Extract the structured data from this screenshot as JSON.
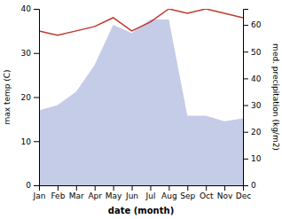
{
  "chart_data": {
    "type": "line",
    "categories": [
      "Jan",
      "Feb",
      "Mar",
      "Apr",
      "May",
      "Jun",
      "Jul",
      "Aug",
      "Sep",
      "Oct",
      "Nov",
      "Dec"
    ],
    "series": [
      {
        "type": "area",
        "color": "#c5cce8",
        "axis": "y2",
        "values": [
          28,
          30,
          35,
          45,
          60,
          57,
          62,
          62,
          26,
          26,
          24,
          25
        ]
      },
      {
        "type": "line",
        "color": "#c0392b",
        "values": [
          35,
          34,
          35,
          36,
          38,
          35,
          37,
          40,
          39,
          40,
          39,
          38
        ]
      }
    ],
    "xlabel": "date (month)",
    "ylabel": "max temp (C)",
    "y2label": "med. precipitation (kg/m2)",
    "ylim": [
      0,
      40
    ],
    "yticks": [
      0,
      10,
      20,
      30,
      40
    ],
    "y2lim": [
      0,
      66
    ],
    "y2ticks": [
      0,
      10,
      20,
      30,
      40,
      50,
      60
    ],
    "grid": false
  }
}
